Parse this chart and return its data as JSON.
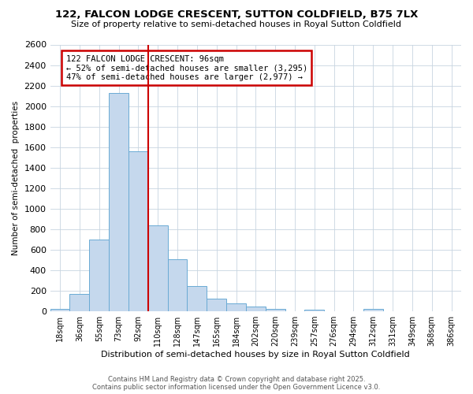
{
  "title_line1": "122, FALCON LODGE CRESCENT, SUTTON COLDFIELD, B75 7LX",
  "title_line2": "Size of property relative to semi-detached houses in Royal Sutton Coldfield",
  "xlabel": "Distribution of semi-detached houses by size in Royal Sutton Coldfield",
  "ylabel": "Number of semi-detached  properties",
  "footer_line1": "Contains HM Land Registry data © Crown copyright and database right 2025.",
  "footer_line2": "Contains public sector information licensed under the Open Government Licence v3.0.",
  "annotation_line1": "122 FALCON LODGE CRESCENT: 96sqm",
  "annotation_line2": "← 52% of semi-detached houses are smaller (3,295)",
  "annotation_line3": "47% of semi-detached houses are larger (2,977) →",
  "bar_color": "#c5d8ed",
  "bar_edge_color": "#6aaad4",
  "redline_color": "#cc0000",
  "annotation_box_edge": "#cc0000",
  "background_color": "#ffffff",
  "grid_color": "#c8d4e0",
  "categories": [
    "18sqm",
    "36sqm",
    "55sqm",
    "73sqm",
    "92sqm",
    "110sqm",
    "128sqm",
    "147sqm",
    "165sqm",
    "184sqm",
    "202sqm",
    "220sqm",
    "239sqm",
    "257sqm",
    "276sqm",
    "294sqm",
    "312sqm",
    "331sqm",
    "349sqm",
    "368sqm",
    "386sqm"
  ],
  "values": [
    20,
    170,
    700,
    2130,
    1560,
    840,
    510,
    250,
    120,
    75,
    45,
    20,
    0,
    15,
    0,
    0,
    20,
    0,
    0,
    0,
    0
  ],
  "redline_index": 4.5,
  "ylim": [
    0,
    2600
  ],
  "yticks": [
    0,
    200,
    400,
    600,
    800,
    1000,
    1200,
    1400,
    1600,
    1800,
    2000,
    2200,
    2400,
    2600
  ]
}
